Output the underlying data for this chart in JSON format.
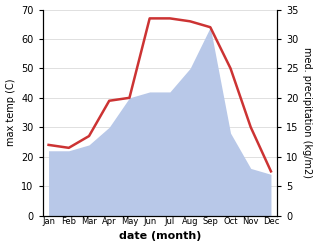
{
  "months": [
    "Jan",
    "Feb",
    "Mar",
    "Apr",
    "May",
    "Jun",
    "Jul",
    "Aug",
    "Sep",
    "Oct",
    "Nov",
    "Dec"
  ],
  "month_positions": [
    0,
    1,
    2,
    3,
    4,
    5,
    6,
    7,
    8,
    9,
    10,
    11
  ],
  "temperature": [
    24,
    23,
    27,
    39,
    40,
    67,
    67,
    66,
    64,
    50,
    30,
    15
  ],
  "precipitation": [
    11,
    11,
    12,
    15,
    20,
    21,
    21,
    25,
    32,
    14,
    8,
    7
  ],
  "temp_color": "#cc3333",
  "precip_color": "#b8c8e8",
  "left_ylim": [
    0,
    70
  ],
  "right_ylim": [
    0,
    35
  ],
  "left_yticks": [
    0,
    10,
    20,
    30,
    40,
    50,
    60,
    70
  ],
  "right_yticks": [
    0,
    5,
    10,
    15,
    20,
    25,
    30,
    35
  ],
  "left_ylabel": "max temp (C)",
  "right_ylabel": "med. precipitation (kg/m2)",
  "xlabel": "date (month)",
  "xlabel_fontweight": "bold",
  "figsize": [
    3.18,
    2.47
  ],
  "dpi": 100
}
